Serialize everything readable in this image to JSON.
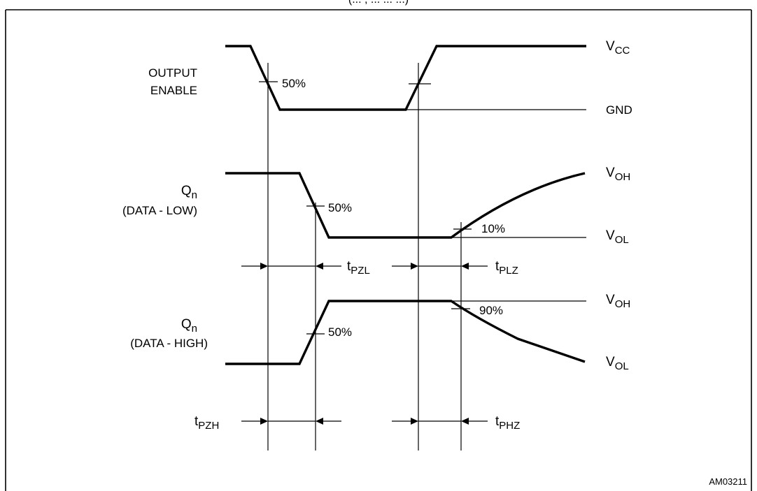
{
  "header_fragment": "(... , ... ... ...)",
  "figure_id": "AM03211",
  "signals": {
    "output_enable": {
      "label_line1": "OUTPUT",
      "label_line2": "ENABLE",
      "threshold": "50%"
    },
    "qn_low": {
      "label": "Q",
      "label_sub": "n",
      "label_line2": "(DATA - LOW)",
      "threshold_fall": "50%",
      "threshold_rise": "10%"
    },
    "qn_high": {
      "label": "Q",
      "label_sub": "n",
      "label_line2": "(DATA - HIGH)",
      "threshold_rise": "50%",
      "threshold_fall": "90%"
    }
  },
  "levels": {
    "vcc": {
      "main": "V",
      "sub": "CC"
    },
    "gnd": {
      "main": "GND"
    },
    "voh_1": {
      "main": "V",
      "sub": "OH"
    },
    "vol_1": {
      "main": "V",
      "sub": "OL"
    },
    "voh_2": {
      "main": "V",
      "sub": "OH"
    },
    "vol_2": {
      "main": "V",
      "sub": "OL"
    }
  },
  "timings": {
    "tpzl": {
      "main": "t",
      "sub": "PZL"
    },
    "tplz": {
      "main": "t",
      "sub": "PLZ"
    },
    "tpzh": {
      "main": "t",
      "sub": "PZH"
    },
    "tphz": {
      "main": "t",
      "sub": "PHZ"
    }
  }
}
